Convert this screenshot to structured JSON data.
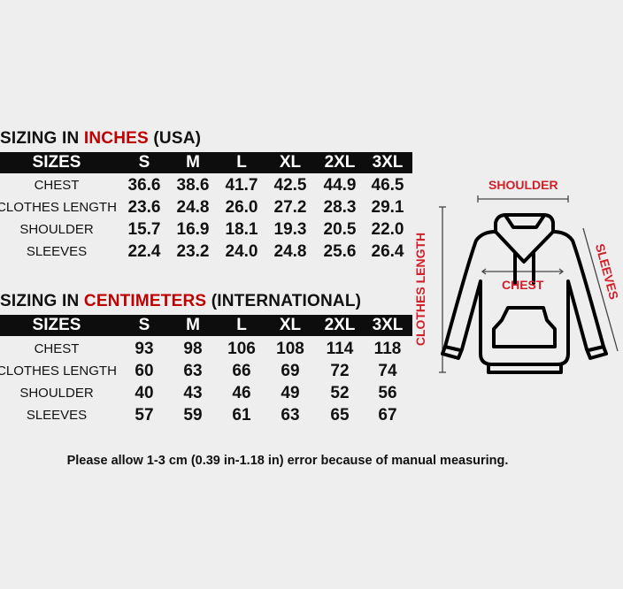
{
  "columns": [
    "SIZES",
    "S",
    "M",
    "L",
    "XL",
    "2XL",
    "3XL"
  ],
  "inches": {
    "title_prefix": "SIZING IN ",
    "title_highlight": "INCHES",
    "title_suffix": " (USA)",
    "rows": [
      {
        "label": "CHEST",
        "values": [
          "36.6",
          "38.6",
          "41.7",
          "42.5",
          "44.9",
          "46.5"
        ]
      },
      {
        "label": "CLOTHES LENGTH",
        "values": [
          "23.6",
          "24.8",
          "26.0",
          "27.2",
          "28.3",
          "29.1"
        ]
      },
      {
        "label": "SHOULDER",
        "values": [
          "15.7",
          "16.9",
          "18.1",
          "19.3",
          "20.5",
          "22.0"
        ]
      },
      {
        "label": "SLEEVES",
        "values": [
          "22.4",
          "23.2",
          "24.0",
          "24.8",
          "25.6",
          "26.4"
        ]
      }
    ]
  },
  "centimeters": {
    "title_prefix": "SIZING IN ",
    "title_highlight": "CENTIMETERS",
    "title_suffix": " (INTERNATIONAL)",
    "rows": [
      {
        "label": "CHEST",
        "values": [
          "93",
          "98",
          "106",
          "108",
          "114",
          "118"
        ]
      },
      {
        "label": "CLOTHES LENGTH",
        "values": [
          "60",
          "63",
          "66",
          "69",
          "72",
          "74"
        ]
      },
      {
        "label": "SHOULDER",
        "values": [
          "40",
          "43",
          "46",
          "49",
          "52",
          "56"
        ]
      },
      {
        "label": "SLEEVES",
        "values": [
          "57",
          "59",
          "61",
          "63",
          "65",
          "67"
        ]
      }
    ]
  },
  "diagram": {
    "shoulder": "SHOULDER",
    "chest": "CHEST",
    "clothes_length": "CLOTHES LENGTH",
    "sleeves": "SLEEVES"
  },
  "note": "Please allow 1-3 cm (0.39 in-1.18 in) error because of manual measuring.",
  "colors": {
    "accent": "#c00000",
    "diagram_label": "#d0202a",
    "header_bg": "#0d0d0d",
    "background": "#eeeeee"
  }
}
